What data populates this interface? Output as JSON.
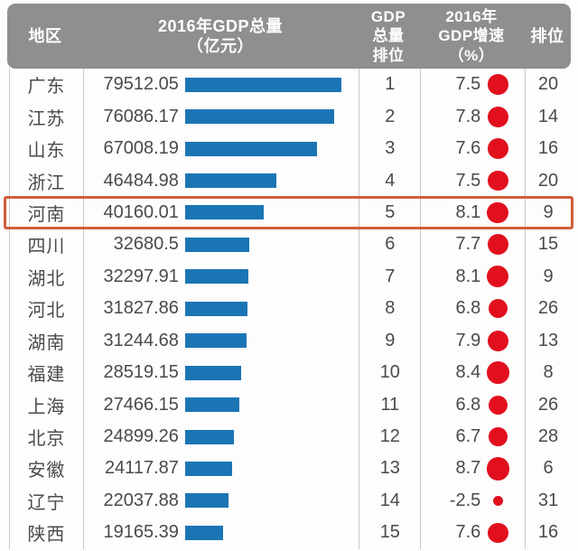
{
  "colors": {
    "header_bg": "#8f8f8f",
    "header_text": "#ffffff",
    "bar": "#1b75b5",
    "dot": "#e2101f",
    "highlight_border": "#cf5e3a",
    "divider": "#c9c9c9",
    "text": "#4a4a4a"
  },
  "header": {
    "region": "地区",
    "gdp_total": "2016年GDP总量\n（亿元）",
    "gdp_rank": "GDP\n总量\n排位",
    "growth": "2016年\nGDP增速\n（%）",
    "growth_rank": "排位"
  },
  "chart_data": {
    "type": "table",
    "title": "",
    "columns": [
      "地区",
      "2016年GDP总量（亿元）",
      "GDP总量排位",
      "2016年GDP增速（%）",
      "排位"
    ],
    "embedded_visuals": {
      "gdp_column": "horizontal bar proportional to GDP value",
      "growth_column": "red bubble sized proportional to absolute growth rate"
    },
    "bar_max_value": 79512.05,
    "highlighted_region": "河南",
    "rows": [
      {
        "region": "广东",
        "gdp": 79512.05,
        "gdp_rank": 1,
        "growth": 7.5,
        "growth_rank": 20
      },
      {
        "region": "江苏",
        "gdp": 76086.17,
        "gdp_rank": 2,
        "growth": 7.8,
        "growth_rank": 14
      },
      {
        "region": "山东",
        "gdp": 67008.19,
        "gdp_rank": 3,
        "growth": 7.6,
        "growth_rank": 16
      },
      {
        "region": "浙江",
        "gdp": 46484.98,
        "gdp_rank": 4,
        "growth": 7.5,
        "growth_rank": 20
      },
      {
        "region": "河南",
        "gdp": 40160.01,
        "gdp_rank": 5,
        "growth": 8.1,
        "growth_rank": 9
      },
      {
        "region": "四川",
        "gdp": 32680.5,
        "gdp_rank": 6,
        "growth": 7.7,
        "growth_rank": 15
      },
      {
        "region": "湖北",
        "gdp": 32297.91,
        "gdp_rank": 7,
        "growth": 8.1,
        "growth_rank": 9
      },
      {
        "region": "河北",
        "gdp": 31827.86,
        "gdp_rank": 8,
        "growth": 6.8,
        "growth_rank": 26
      },
      {
        "region": "湖南",
        "gdp": 31244.68,
        "gdp_rank": 9,
        "growth": 7.9,
        "growth_rank": 13
      },
      {
        "region": "福建",
        "gdp": 28519.15,
        "gdp_rank": 10,
        "growth": 8.4,
        "growth_rank": 8
      },
      {
        "region": "上海",
        "gdp": 27466.15,
        "gdp_rank": 11,
        "growth": 6.8,
        "growth_rank": 26
      },
      {
        "region": "北京",
        "gdp": 24899.26,
        "gdp_rank": 12,
        "growth": 6.7,
        "growth_rank": 28
      },
      {
        "region": "安徽",
        "gdp": 24117.87,
        "gdp_rank": 13,
        "growth": 8.7,
        "growth_rank": 6
      },
      {
        "region": "辽宁",
        "gdp": 22037.88,
        "gdp_rank": 14,
        "growth": -2.5,
        "growth_rank": 31
      },
      {
        "region": "陕西",
        "gdp": 19165.39,
        "gdp_rank": 15,
        "growth": 7.6,
        "growth_rank": 16
      }
    ]
  }
}
